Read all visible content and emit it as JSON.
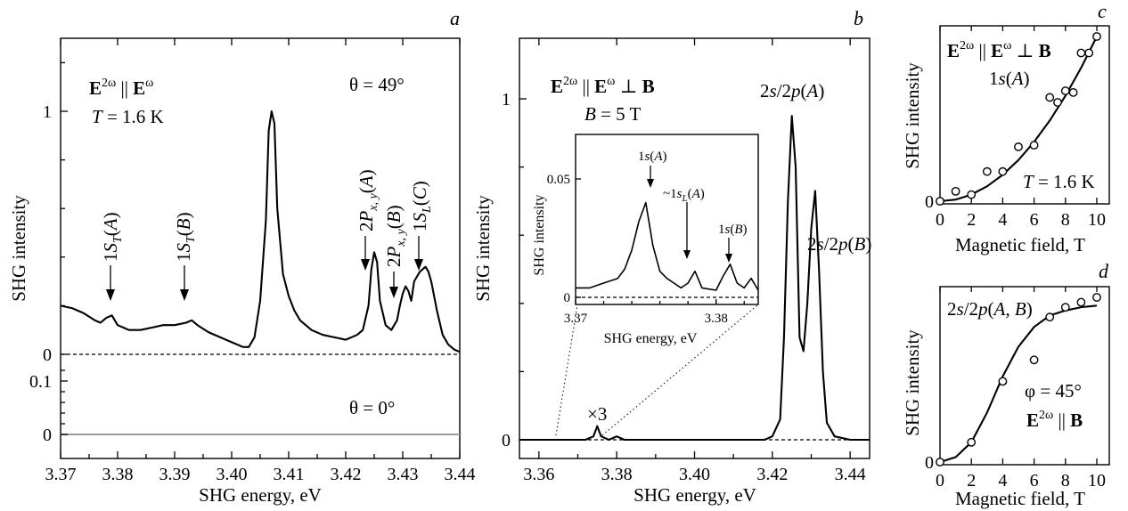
{
  "chart_data": [
    {
      "panel": "a",
      "type": "line",
      "xlabel": "SHG energy, eV",
      "ylabel": "SHG intensity",
      "xlim": [
        3.37,
        3.44
      ],
      "x_ticks": [
        "3.37",
        "3.38",
        "3.39",
        "3.40",
        "3.41",
        "3.42",
        "3.43",
        "3.44"
      ],
      "annotations": {
        "field": "E2ω || Eω",
        "temperature": "T = 1.6 K",
        "angle_upper": "θ = 49°",
        "angle_lower": "θ = 0°",
        "peak_labels": [
          "1ST(A)",
          "1ST(B)",
          "2Px,y(A)",
          "2Px,y(B)",
          "1SL(C)"
        ]
      },
      "upper_trace": {
        "name": "θ = 49°",
        "y_ticks": [
          "0",
          "1"
        ],
        "ylim": [
          -0.05,
          1.27
        ],
        "x": [
          3.37,
          3.372,
          3.374,
          3.376,
          3.377,
          3.378,
          3.379,
          3.38,
          3.382,
          3.384,
          3.386,
          3.388,
          3.39,
          3.392,
          3.393,
          3.394,
          3.396,
          3.398,
          3.4,
          3.402,
          3.403,
          3.404,
          3.405,
          3.406,
          3.4065,
          3.407,
          3.4075,
          3.408,
          3.409,
          3.41,
          3.411,
          3.412,
          3.414,
          3.416,
          3.418,
          3.42,
          3.422,
          3.423,
          3.424,
          3.4245,
          3.425,
          3.4255,
          3.426,
          3.427,
          3.428,
          3.429,
          3.4295,
          3.43,
          3.4305,
          3.431,
          3.4315,
          3.432,
          3.433,
          3.434,
          3.4345,
          3.435,
          3.436,
          3.437,
          3.438,
          3.439,
          3.44
        ],
        "y": [
          0.2,
          0.19,
          0.17,
          0.14,
          0.13,
          0.15,
          0.16,
          0.12,
          0.1,
          0.1,
          0.11,
          0.12,
          0.12,
          0.13,
          0.14,
          0.12,
          0.09,
          0.07,
          0.05,
          0.03,
          0.03,
          0.07,
          0.22,
          0.55,
          0.92,
          1.0,
          0.95,
          0.6,
          0.33,
          0.24,
          0.18,
          0.14,
          0.1,
          0.08,
          0.07,
          0.06,
          0.08,
          0.1,
          0.2,
          0.35,
          0.42,
          0.38,
          0.22,
          0.12,
          0.1,
          0.14,
          0.2,
          0.25,
          0.28,
          0.26,
          0.22,
          0.3,
          0.34,
          0.36,
          0.34,
          0.3,
          0.18,
          0.08,
          0.04,
          0.02,
          0.01
        ]
      },
      "lower_trace": {
        "name": "θ = 0°",
        "y_ticks": [
          "0",
          "0.1"
        ],
        "ylim": [
          -0.02,
          0.16
        ],
        "x": [
          3.37,
          3.44
        ],
        "y": [
          0,
          0
        ]
      }
    },
    {
      "panel": "b",
      "type": "line",
      "xlabel": "SHG energy, eV",
      "ylabel": "SHG intensity",
      "xlim": [
        3.355,
        3.445
      ],
      "ylim": [
        -0.03,
        1.24
      ],
      "x_ticks": [
        "3.36",
        "3.38",
        "3.40",
        "3.42",
        "3.44"
      ],
      "y_ticks": [
        "0",
        "1"
      ],
      "annotations": {
        "field": "E2ω || Eω ⊥ B",
        "magnetic_field": "B = 5 T",
        "scale_mark": "×3",
        "peak_labels": [
          "2s/2p(A)",
          "2s/2p(B)"
        ]
      },
      "x": [
        3.355,
        3.36,
        3.365,
        3.37,
        3.372,
        3.374,
        3.375,
        3.376,
        3.378,
        3.38,
        3.382,
        3.385,
        3.39,
        3.395,
        3.4,
        3.405,
        3.41,
        3.415,
        3.418,
        3.42,
        3.422,
        3.423,
        3.424,
        3.425,
        3.426,
        3.427,
        3.428,
        3.429,
        3.43,
        3.431,
        3.432,
        3.433,
        3.434,
        3.436,
        3.44,
        3.445
      ],
      "y": [
        0.0,
        0.0,
        0.0,
        0.0,
        0.0,
        0.01,
        0.04,
        0.01,
        0.0,
        0.01,
        0.0,
        0.0,
        0.0,
        0.0,
        0.0,
        0.0,
        0.0,
        0.0,
        0.0,
        0.01,
        0.06,
        0.3,
        0.7,
        0.95,
        0.8,
        0.3,
        0.26,
        0.4,
        0.62,
        0.73,
        0.5,
        0.2,
        0.05,
        0.01,
        0.0,
        0.0
      ],
      "inset": {
        "xlabel": "SHG energy, eV",
        "ylabel": "SHG intensity",
        "xlim": [
          3.37,
          3.383
        ],
        "ylim": [
          -0.004,
          0.071
        ],
        "x_ticks": [
          "3.37",
          "3.38"
        ],
        "y_ticks": [
          "0",
          "0.05"
        ],
        "peak_labels": [
          "1s(A)",
          "~1sL(A)",
          "1s(B)"
        ],
        "x": [
          3.37,
          3.371,
          3.372,
          3.373,
          3.3735,
          3.374,
          3.3745,
          3.375,
          3.3755,
          3.376,
          3.3765,
          3.377,
          3.3775,
          3.378,
          3.3785,
          3.379,
          3.38,
          3.3805,
          3.381,
          3.3815,
          3.382,
          3.3825,
          3.383
        ],
        "y": [
          0.004,
          0.004,
          0.006,
          0.008,
          0.012,
          0.02,
          0.032,
          0.04,
          0.022,
          0.011,
          0.008,
          0.006,
          0.004,
          0.006,
          0.011,
          0.004,
          0.003,
          0.009,
          0.014,
          0.006,
          0.004,
          0.008,
          0.003
        ]
      }
    },
    {
      "panel": "c",
      "type": "scatter",
      "xlabel": "Magnetic field, T",
      "ylabel": "SHG intensity",
      "xlim": [
        0,
        10.8
      ],
      "ylim": [
        -0.01,
        1.12
      ],
      "x_ticks": [
        "0",
        "2",
        "4",
        "6",
        "8",
        "10"
      ],
      "y_ticks": [
        "0"
      ],
      "annotations": {
        "field": "E2ω || Eω ⊥ B",
        "transition": "1s(A)",
        "temperature": "T = 1.6 K"
      },
      "points": {
        "x": [
          0,
          1,
          2,
          3,
          4,
          5,
          6,
          7,
          7.5,
          8,
          8.5,
          9,
          9.5,
          10
        ],
        "y": [
          0,
          0.06,
          0.04,
          0.18,
          0.18,
          0.33,
          0.34,
          0.63,
          0.6,
          0.67,
          0.66,
          0.9,
          0.9,
          1.0
        ]
      },
      "fit": {
        "x": [
          0,
          1,
          2,
          3,
          4,
          5,
          6,
          7,
          8,
          9,
          10
        ],
        "y": [
          0,
          0.01,
          0.04,
          0.09,
          0.16,
          0.25,
          0.36,
          0.49,
          0.64,
          0.81,
          1.0
        ]
      }
    },
    {
      "panel": "d",
      "type": "scatter",
      "xlabel": "Magnetic field, T",
      "ylabel": "SHG intensity",
      "xlim": [
        0,
        10.8
      ],
      "ylim": [
        -0.02,
        1.14
      ],
      "x_ticks": [
        "0",
        "2",
        "4",
        "6",
        "8",
        "10"
      ],
      "y_ticks": [
        "0"
      ],
      "annotations": {
        "transition": "2s/2p(A,B)",
        "angle": "φ = 45°",
        "field": "E2ω || B"
      },
      "points": {
        "x": [
          0,
          2,
          4,
          6,
          7,
          8,
          9,
          10
        ],
        "y": [
          0,
          0.12,
          0.49,
          0.62,
          0.88,
          0.94,
          0.97,
          1.0
        ]
      },
      "fit": {
        "x": [
          0,
          1,
          2,
          3,
          4,
          5,
          6,
          7,
          8,
          9,
          10
        ],
        "y": [
          0,
          0.03,
          0.12,
          0.3,
          0.52,
          0.7,
          0.82,
          0.89,
          0.92,
          0.94,
          0.95
        ]
      }
    }
  ]
}
